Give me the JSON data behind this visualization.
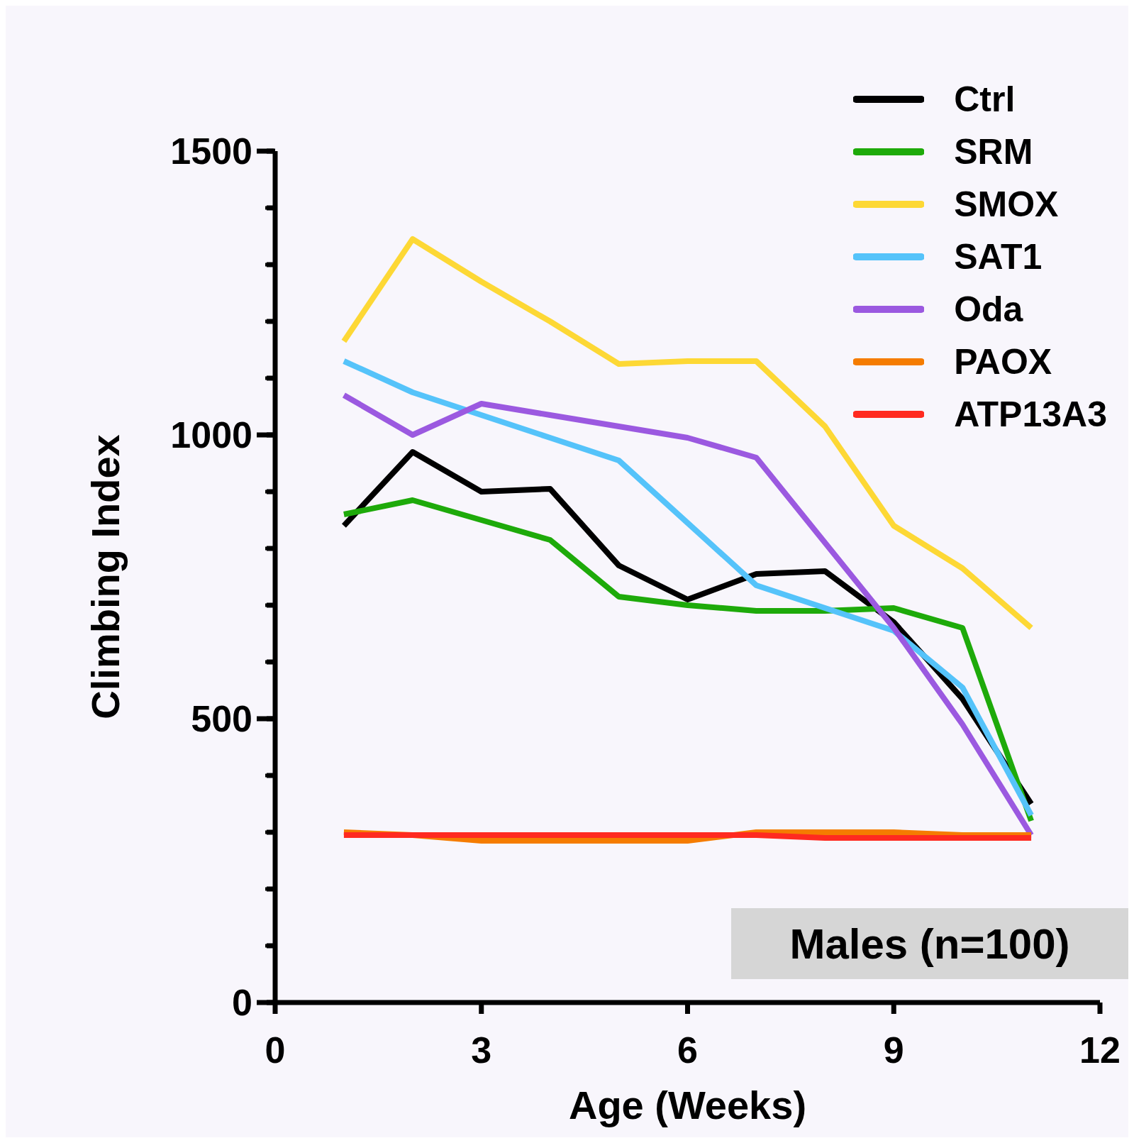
{
  "chart_data": {
    "type": "line",
    "xlabel": "Age (Weeks)",
    "ylabel": "Climbing Index",
    "x": [
      1,
      2,
      3,
      4,
      5,
      6,
      7,
      8,
      9,
      10,
      11
    ],
    "series": [
      {
        "name": "Ctrl",
        "color": "#000000",
        "values": [
          840,
          970,
          900,
          905,
          770,
          710,
          755,
          760,
          670,
          535,
          350
        ]
      },
      {
        "name": "SRM",
        "color": "#1eaa0a",
        "values": [
          860,
          885,
          850,
          815,
          715,
          700,
          690,
          690,
          695,
          660,
          320
        ]
      },
      {
        "name": "SMOX",
        "color": "#fdd835",
        "values": [
          1165,
          1345,
          1270,
          1200,
          1125,
          1130,
          1130,
          1015,
          840,
          765,
          660
        ]
      },
      {
        "name": "SAT1",
        "color": "#55c3fa",
        "values": [
          1130,
          1075,
          1035,
          995,
          955,
          845,
          735,
          695,
          655,
          555,
          330
        ]
      },
      {
        "name": "Oda",
        "color": "#9b59e0",
        "values": [
          1070,
          1000,
          1055,
          1035,
          1015,
          995,
          960,
          810,
          660,
          490,
          295
        ]
      },
      {
        "name": "PAOX",
        "color": "#f57c00",
        "values": [
          300,
          295,
          285,
          285,
          285,
          285,
          300,
          300,
          300,
          295,
          295
        ]
      },
      {
        "name": "ATP13A3",
        "color": "#ff2a20",
        "values": [
          295,
          295,
          295,
          295,
          295,
          295,
          295,
          290,
          290,
          290,
          290
        ]
      }
    ],
    "xlim": [
      0,
      12
    ],
    "xticks": [
      0,
      3,
      6,
      9,
      12
    ],
    "ylim": [
      0,
      1500
    ],
    "yticks": [
      0,
      {
        "value": 100,
        "label": null
      },
      {
        "value": 200,
        "label": null
      },
      {
        "value": 300,
        "label": null
      },
      {
        "value": 400,
        "label": null
      },
      500,
      {
        "value": 600,
        "label": null
      },
      {
        "value": 700,
        "label": null
      },
      {
        "value": 800,
        "label": null
      },
      {
        "value": 900,
        "label": null
      },
      1000,
      {
        "value": 1100,
        "label": null
      },
      {
        "value": 1200,
        "label": null
      },
      {
        "value": 1300,
        "label": null
      },
      {
        "value": 1400,
        "label": null
      },
      1500
    ],
    "grid": false,
    "legend": "top right",
    "marker": "none",
    "line_style": "solid",
    "annotations": [
      "Males (n=100)"
    ]
  }
}
